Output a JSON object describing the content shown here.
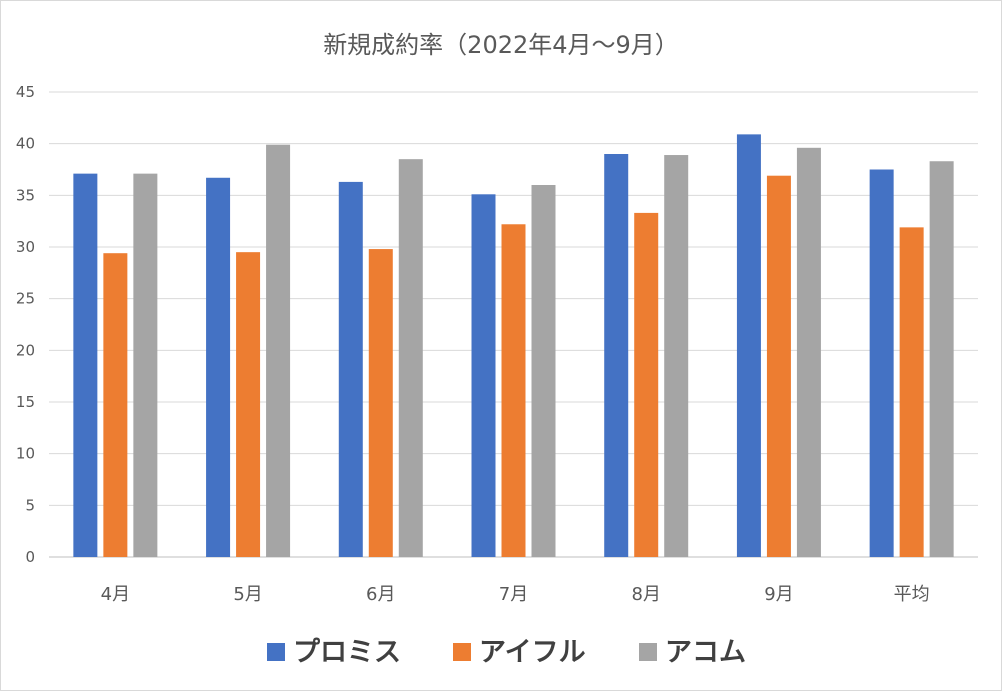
{
  "chart_data": {
    "type": "bar",
    "title": "新規成約率（2022年4月～9月）",
    "categories": [
      "4月",
      "5月",
      "6月",
      "7月",
      "8月",
      "9月",
      "平均"
    ],
    "series": [
      {
        "name": "プロミス",
        "color": "#4472c4",
        "values": [
          37.1,
          36.7,
          36.3,
          35.1,
          39.0,
          40.9,
          37.5
        ]
      },
      {
        "name": "アイフル",
        "color": "#ed7d31",
        "values": [
          29.4,
          29.5,
          29.8,
          32.2,
          33.3,
          36.9,
          31.9
        ]
      },
      {
        "name": "アコム",
        "color": "#a5a5a5",
        "values": [
          37.1,
          39.9,
          38.5,
          36.0,
          38.9,
          39.6,
          38.3
        ]
      }
    ],
    "ylim": [
      0,
      45
    ],
    "yticks": [
      0,
      5,
      10,
      15,
      20,
      25,
      30,
      35,
      40,
      45
    ],
    "grid": true,
    "legend_position": "bottom"
  }
}
